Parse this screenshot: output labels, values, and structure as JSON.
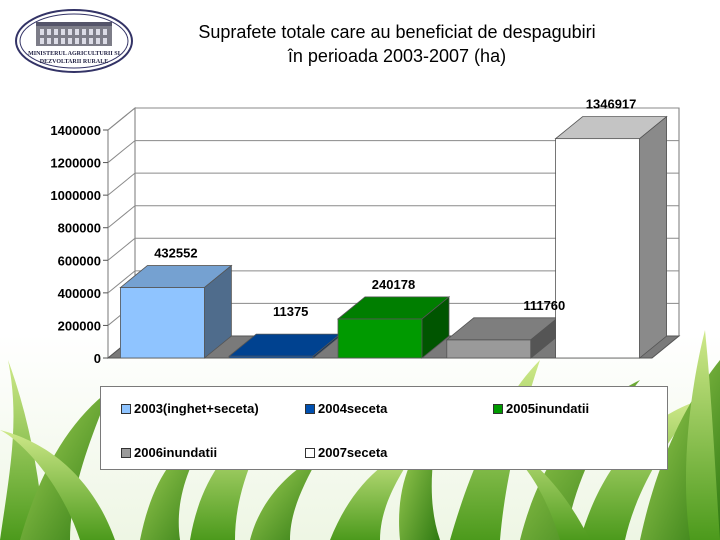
{
  "title": {
    "line1": "Suprafete totale care au beneficiat de despagubiri",
    "line2": "în perioada 2003-2007 (ha)"
  },
  "logo": {
    "text_line1": "MINISTERUL AGRICULTURII SI",
    "text_line2": "DEZVOLTARII RURALE"
  },
  "colors": {
    "s2003": "#8fc4ff",
    "s2004": "#0050b0",
    "s2005": "#009a00",
    "s2006": "#9a9a9a",
    "s2007": "#ffffff"
  },
  "chart_data": {
    "type": "bar",
    "three_d": true,
    "categories": [
      "2003(inghet+seceta)",
      "2004seceta",
      "2005inundatii",
      "2006inundatii",
      "2007seceta"
    ],
    "values": [
      432552,
      11375,
      240178,
      111760,
      1346917
    ],
    "data_labels": [
      "432552",
      "11375",
      "240178",
      "111760",
      "1346917"
    ],
    "ylim": [
      0,
      1400000
    ],
    "yticks": [
      0,
      200000,
      400000,
      600000,
      800000,
      1000000,
      1200000,
      1400000
    ],
    "ytick_labels": [
      "0",
      "200000",
      "400000",
      "600000",
      "800000",
      "1000000",
      "1200000",
      "1400000"
    ],
    "grid": true,
    "legend_position": "bottom",
    "legend": [
      {
        "label": "2003(inghet+seceta)",
        "color": "#8fc4ff"
      },
      {
        "label": "2004seceta",
        "color": "#0050b0"
      },
      {
        "label": "2005inundatii",
        "color": "#009a00"
      },
      {
        "label": "2006inundatii",
        "color": "#9a9a9a"
      },
      {
        "label": "2007seceta",
        "color": "#ffffff"
      }
    ]
  }
}
